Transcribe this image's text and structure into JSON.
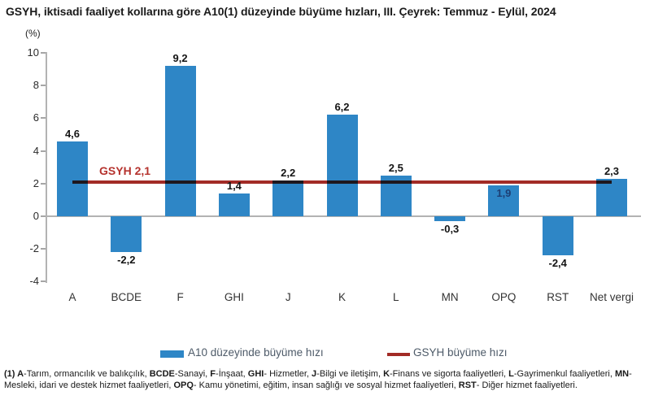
{
  "title": "GSYH, iktisadi faaliyet kollarına göre A10(1) düzeyinde büyüme hızları, III. Çeyrek: Temmuz - Eylül, 2024",
  "chart_data": {
    "type": "bar",
    "title": "GSYH, iktisadi faaliyet kollarına göre A10(1) düzeyinde büyüme hızları, III. Çeyrek: Temmuz - Eylül, 2024",
    "ylabel": "(%)",
    "ylim": [
      -4,
      10
    ],
    "ytick_step": 2,
    "yticks": [
      10,
      8,
      6,
      4,
      2,
      0,
      -2,
      -4
    ],
    "grid": false,
    "legend_position": "bottom",
    "bar_color": "#2E86C6",
    "points": [
      {
        "category": "A",
        "value": 4.6,
        "label": "4,6",
        "label_position": "above"
      },
      {
        "category": "BCDE",
        "value": -2.2,
        "label": "-2,2",
        "label_position": "below"
      },
      {
        "category": "F",
        "value": 9.2,
        "label": "9,2",
        "label_position": "above"
      },
      {
        "category": "GHI",
        "value": 1.4,
        "label": "1,4",
        "label_position": "above"
      },
      {
        "category": "J",
        "value": 2.2,
        "label": "2,2",
        "label_position": "above"
      },
      {
        "category": "K",
        "value": 6.2,
        "label": "6,2",
        "label_position": "above"
      },
      {
        "category": "L",
        "value": 2.5,
        "label": "2,5",
        "label_position": "above"
      },
      {
        "category": "MN",
        "value": -0.3,
        "label": "-0,3",
        "label_position": "below"
      },
      {
        "category": "OPQ",
        "value": 1.9,
        "label": "1,9",
        "label_position": "inside"
      },
      {
        "category": "RST",
        "value": -2.4,
        "label": "-2,4",
        "label_position": "below"
      },
      {
        "category": "Net vergi",
        "value": 2.3,
        "label": "2,3",
        "label_position": "above"
      }
    ],
    "reference_line": {
      "value": 2.1,
      "label": "GSYH 2,1",
      "color": "#A22B26"
    },
    "legend": [
      {
        "label": "A10 düzeyinde büyüme hızı",
        "type": "bar",
        "color": "#2E86C6"
      },
      {
        "label": "GSYH büyüme hızı",
        "type": "line",
        "color": "#A22B26"
      }
    ]
  },
  "colors": {
    "bar": "#2E86C6",
    "ref_line": "#A22B26",
    "ref_label": "#B5332E",
    "inside_label": "#1D3F74",
    "axis": "#B3B3B3"
  },
  "footnote": {
    "segments": [
      {
        "text": "(1) A",
        "bold": true
      },
      {
        "text": "-Tarım, ormancılık ve balıkçılık, ",
        "bold": false
      },
      {
        "text": "BCDE",
        "bold": true
      },
      {
        "text": "-Sanayi, ",
        "bold": false
      },
      {
        "text": "F",
        "bold": true
      },
      {
        "text": "-İnşaat, ",
        "bold": false
      },
      {
        "text": "GHI",
        "bold": true
      },
      {
        "text": "- Hizmetler, ",
        "bold": false
      },
      {
        "text": "J",
        "bold": true
      },
      {
        "text": "-Bilgi ve iletişim, ",
        "bold": false
      },
      {
        "text": "K",
        "bold": true
      },
      {
        "text": "-Finans ve sigorta faaliyetleri, ",
        "bold": false
      },
      {
        "text": "L",
        "bold": true
      },
      {
        "text": "-Gayrimenkul faaliyetleri, ",
        "bold": false
      },
      {
        "text": "MN",
        "bold": true
      },
      {
        "text": "- Mesleki, idari ve destek hizmet faaliyetleri, ",
        "bold": false
      },
      {
        "text": "OPQ",
        "bold": true
      },
      {
        "text": "- Kamu yönetimi, eğitim, insan sağlığı ve sosyal hizmet faaliyetleri, ",
        "bold": false
      },
      {
        "text": "RST",
        "bold": true
      },
      {
        "text": "- Diğer hizmet faaliyetleri.",
        "bold": false
      }
    ]
  }
}
